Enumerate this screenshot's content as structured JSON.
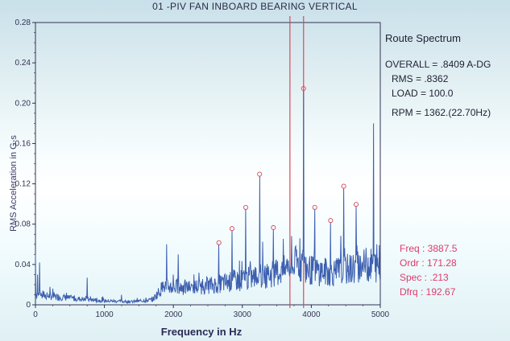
{
  "chart_data": {
    "type": "line",
    "title": "01    -PIV FAN INBOARD BEARING VERTICAL",
    "xlabel": "Frequency in Hz",
    "ylabel": "RMS Acceleration in G-s",
    "xlim": [
      0,
      5000
    ],
    "ylim": [
      0,
      0.28
    ],
    "x_ticks": [
      "0",
      "1000",
      "2000",
      "3000",
      "4000",
      "5000"
    ],
    "y_ticks": [
      "0",
      "0.04",
      "0.08",
      "0.12",
      "0.16",
      "0.20",
      "0.24",
      "0.28"
    ],
    "grid": false,
    "series": [
      {
        "peaks": [
          {
            "x": 0,
            "y": 0.05
          },
          {
            "x": 30,
            "y": 0.03
          },
          {
            "x": 60,
            "y": 0.042
          },
          {
            "x": 110,
            "y": 0.014
          },
          {
            "x": 250,
            "y": 0.016
          },
          {
            "x": 450,
            "y": 0.012
          },
          {
            "x": 750,
            "y": 0.027
          },
          {
            "x": 1250,
            "y": 0.01
          },
          {
            "x": 1900,
            "y": 0.06
          },
          {
            "x": 2000,
            "y": 0.03
          },
          {
            "x": 2070,
            "y": 0.05
          },
          {
            "x": 2280,
            "y": 0.016
          },
          {
            "x": 2660,
            "y": 0.06
          },
          {
            "x": 2850,
            "y": 0.074
          },
          {
            "x": 3050,
            "y": 0.095
          },
          {
            "x": 3250,
            "y": 0.128
          },
          {
            "x": 3450,
            "y": 0.075
          },
          {
            "x": 3650,
            "y": 0.045
          },
          {
            "x": 3887.5,
            "y": 0.213
          },
          {
            "x": 4050,
            "y": 0.095
          },
          {
            "x": 4280,
            "y": 0.082
          },
          {
            "x": 4470,
            "y": 0.116
          },
          {
            "x": 4650,
            "y": 0.098
          },
          {
            "x": 4900,
            "y": 0.18
          },
          {
            "x": 4950,
            "y": 0.06
          }
        ],
        "baseline": [
          {
            "x": 0,
            "y": 0.01
          },
          {
            "x": 300,
            "y": 0.008
          },
          {
            "x": 600,
            "y": 0.006
          },
          {
            "x": 1000,
            "y": 0.004
          },
          {
            "x": 1400,
            "y": 0.003
          },
          {
            "x": 1700,
            "y": 0.005
          },
          {
            "x": 1850,
            "y": 0.018
          },
          {
            "x": 2200,
            "y": 0.017
          },
          {
            "x": 2600,
            "y": 0.02
          },
          {
            "x": 3000,
            "y": 0.025
          },
          {
            "x": 3400,
            "y": 0.03
          },
          {
            "x": 3700,
            "y": 0.036
          },
          {
            "x": 3800,
            "y": 0.042
          },
          {
            "x": 4000,
            "y": 0.034
          },
          {
            "x": 4300,
            "y": 0.032
          },
          {
            "x": 4600,
            "y": 0.036
          },
          {
            "x": 4800,
            "y": 0.04
          },
          {
            "x": 5000,
            "y": 0.038
          }
        ],
        "color": "#3d5fb0"
      }
    ],
    "cursors": [
      {
        "x": 3690,
        "color": "#d84a5a"
      },
      {
        "x": 3887.5,
        "color": "#d84a5a"
      }
    ],
    "annotations": [
      {
        "x": 2660,
        "y": 0.06
      },
      {
        "x": 2850,
        "y": 0.074
      },
      {
        "x": 3050,
        "y": 0.095
      },
      {
        "x": 3250,
        "y": 0.128
      },
      {
        "x": 3450,
        "y": 0.075
      },
      {
        "x": 3887.5,
        "y": 0.213
      },
      {
        "x": 4050,
        "y": 0.095
      },
      {
        "x": 4280,
        "y": 0.082
      },
      {
        "x": 4470,
        "y": 0.116
      },
      {
        "x": 4650,
        "y": 0.098
      }
    ]
  },
  "info": {
    "route": "Route Spectrum",
    "overall": "OVERALL = .8409 A-DG",
    "rms": "RMS = .8362",
    "load": "LOAD = 100.0",
    "rpm": "RPM = 1362.(22.70Hz)"
  },
  "cursor_readout": {
    "freq": "Freq : 3887.5",
    "ordr": "Ordr : 171.28",
    "spec": "Spec : .213",
    "dfrq": "Dfrq : 192.67"
  },
  "colors": {
    "line": "#3d5fb0",
    "axis": "#333355",
    "cursor": "#d84a5a",
    "readout": "#e03a6a"
  }
}
